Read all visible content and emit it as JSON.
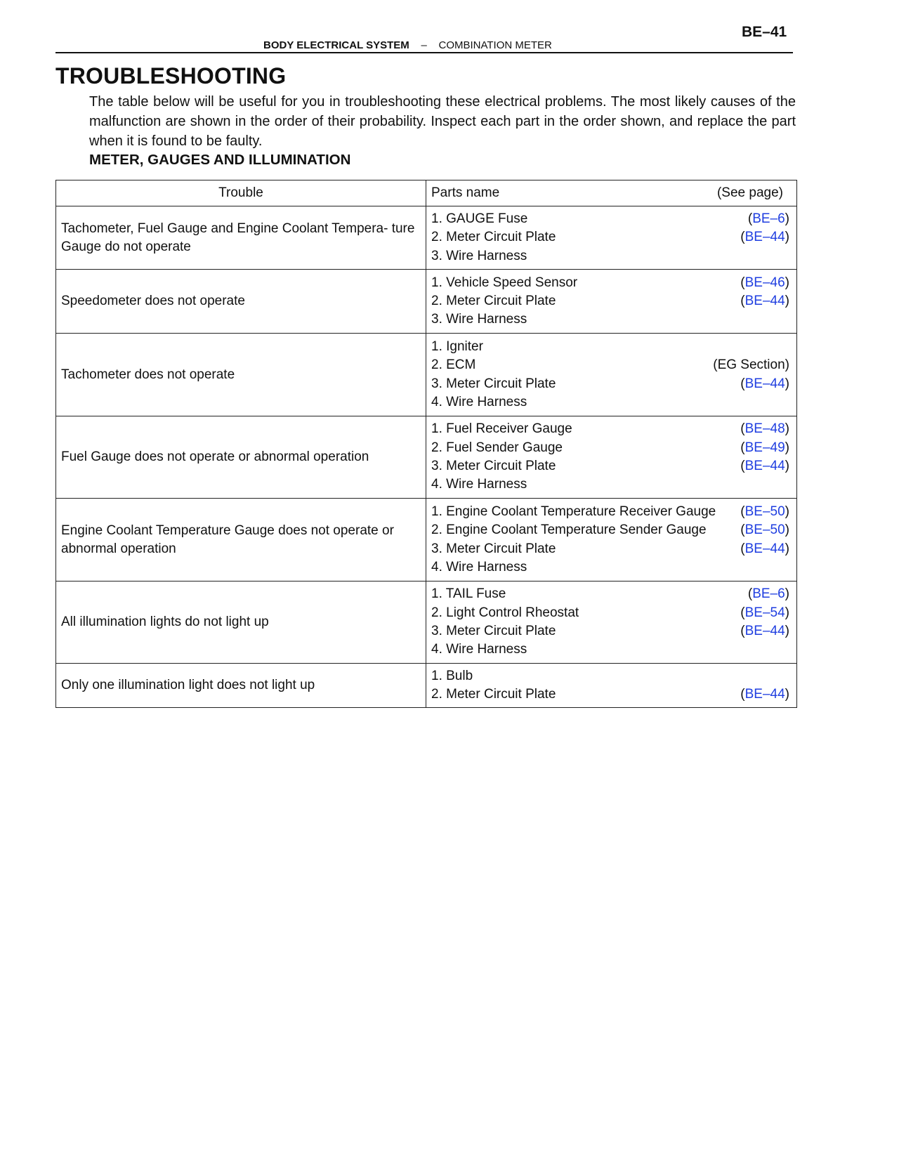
{
  "header": {
    "page_number": "BE–41",
    "section": "BODY ELECTRICAL SYSTEM",
    "separator": "–",
    "subsection": "COMBINATION METER"
  },
  "title": "TROUBLESHOOTING",
  "intro": "The table below will be useful for you in troubleshooting these electrical problems. The most likely causes of the malfunction are shown in the order of their probability. Inspect each part in the order shown, and replace the part when it is found to be faulty.",
  "subheading": "METER, GAUGES AND ILLUMINATION",
  "colors": {
    "link": "#1f3ee0"
  },
  "table": {
    "headers": {
      "trouble": "Trouble",
      "parts": "Parts name",
      "see_page": "(See page)"
    },
    "rows": [
      {
        "trouble": "Tachometer, Fuel Gauge and Engine Coolant Tempera- ture Gauge do not operate",
        "parts": [
          {
            "name": "1. GAUGE Fuse",
            "ref": "BE–6",
            "link": true
          },
          {
            "name": "2. Meter Circuit Plate",
            "ref": "BE–44",
            "link": true
          },
          {
            "name": "3. Wire Harness",
            "ref": ""
          }
        ]
      },
      {
        "trouble": "Speedometer does not operate",
        "parts": [
          {
            "name": "1. Vehicle Speed Sensor",
            "ref": "BE–46",
            "link": true
          },
          {
            "name": "2. Meter Circuit Plate",
            "ref": "BE–44",
            "link": true
          },
          {
            "name": "3. Wire Harness",
            "ref": ""
          }
        ]
      },
      {
        "trouble": "Tachometer does not operate",
        "parts": [
          {
            "name": "1. Igniter",
            "ref": ""
          },
          {
            "name": "2. ECM",
            "ref": "EG Section",
            "link": false
          },
          {
            "name": "3. Meter Circuit Plate",
            "ref": "BE–44",
            "link": true
          },
          {
            "name": "4. Wire Harness",
            "ref": ""
          }
        ]
      },
      {
        "trouble": "Fuel Gauge does not operate or abnormal operation",
        "parts": [
          {
            "name": "1. Fuel Receiver Gauge",
            "ref": "BE–48",
            "link": true
          },
          {
            "name": "2. Fuel Sender Gauge",
            "ref": "BE–49",
            "link": true
          },
          {
            "name": "3. Meter Circuit Plate",
            "ref": "BE–44",
            "link": true
          },
          {
            "name": "4. Wire Harness",
            "ref": ""
          }
        ]
      },
      {
        "trouble": "Engine Coolant Temperature Gauge does not operate or abnormal operation",
        "parts": [
          {
            "name": "1. Engine Coolant Temperature Receiver Gauge",
            "ref": "BE–50",
            "link": true
          },
          {
            "name": "2. Engine Coolant Temperature Sender Gauge",
            "ref": "BE–50",
            "link": true
          },
          {
            "name": "3. Meter Circuit Plate",
            "ref": "BE–44",
            "link": true
          },
          {
            "name": "4. Wire Harness",
            "ref": ""
          }
        ]
      },
      {
        "trouble": "All illumination lights do not light up",
        "parts": [
          {
            "name": "1. TAIL Fuse",
            "ref": "BE–6",
            "link": true
          },
          {
            "name": "2. Light Control Rheostat",
            "ref": "BE–54",
            "link": true
          },
          {
            "name": "3. Meter Circuit Plate",
            "ref": "BE–44",
            "link": true
          },
          {
            "name": "4. Wire Harness",
            "ref": ""
          }
        ]
      },
      {
        "trouble": "Only one illumination light does not light up",
        "parts": [
          {
            "name": "1. Bulb",
            "ref": ""
          },
          {
            "name": "2. Meter Circuit Plate",
            "ref": "BE–44",
            "link": true
          }
        ]
      }
    ]
  }
}
